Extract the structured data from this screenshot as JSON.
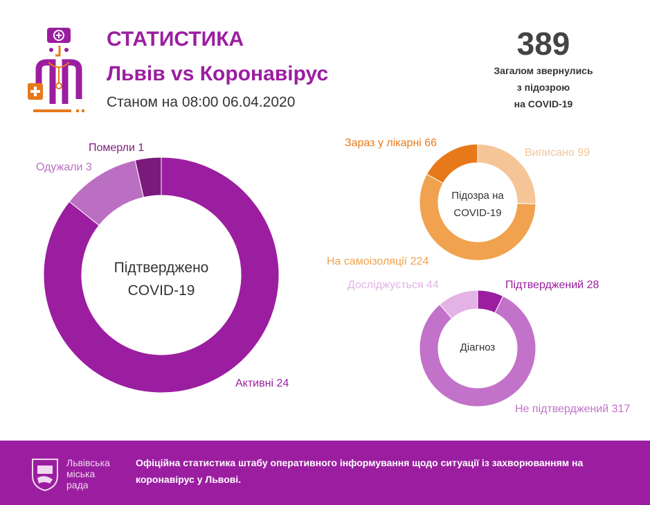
{
  "header": {
    "title": "СТАТИСТИКА",
    "subtitle": "Львів vs Коронавірус",
    "date": "Станом на 08:00 06.04.2020"
  },
  "summary": {
    "total": "389",
    "description": "Загалом звернулись\nз підозрою\nна COVID-19"
  },
  "chart_data": [
    {
      "type": "pie",
      "title": "Підтверджено COVID-19",
      "categories": [
        "Активні",
        "Одужали",
        "Померли"
      ],
      "values": [
        24,
        3,
        1
      ],
      "colors": [
        "#9b1ea0",
        "#bb6fc2",
        "#7a1a7c"
      ],
      "labels": [
        "Активні 24",
        "Одужали 3",
        "Померли 1"
      ]
    },
    {
      "type": "pie",
      "title": "Підозра на COVID-19",
      "categories": [
        "Виписано",
        "На самоізоляції",
        "Зараз у лікарні"
      ],
      "values": [
        99,
        224,
        66
      ],
      "colors": [
        "#f5c598",
        "#f0a24f",
        "#e8791a"
      ],
      "labels": [
        "Виписано 99",
        "На самоізоляції 224",
        "Зараз у лікарні 66"
      ]
    },
    {
      "type": "pie",
      "title": "Діагноз",
      "categories": [
        "Підтверджений",
        "Не підтверджений",
        "Досліджується"
      ],
      "values": [
        28,
        317,
        44
      ],
      "colors": [
        "#9b1ea0",
        "#c272c9",
        "#e2b3e4"
      ],
      "labels": [
        "Підтверджений 28",
        "Не підтверджений 317",
        "Досліджується 44"
      ]
    }
  ],
  "footer": {
    "city": "Львівська\nміська\nрада",
    "text": "Офіційна статистика штабу оперативного інформування щодо ситуації із захворюванням на коронавірус у Львові."
  }
}
